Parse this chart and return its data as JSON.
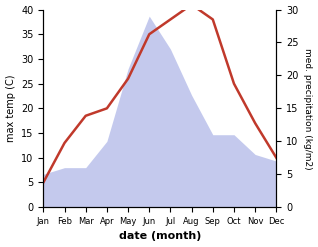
{
  "months": [
    "Jan",
    "Feb",
    "Mar",
    "Apr",
    "May",
    "Jun",
    "Jul",
    "Aug",
    "Sep",
    "Oct",
    "Nov",
    "Dec"
  ],
  "temperature": [
    5,
    13,
    18.5,
    20,
    26,
    35,
    38,
    41,
    38,
    25,
    17,
    10
  ],
  "precipitation": [
    5,
    6,
    6,
    10,
    21,
    29,
    24,
    17,
    11,
    11,
    8,
    7
  ],
  "temp_color": "#c0392b",
  "precip_color_fill": "#b0b8e8",
  "temp_ylim": [
    0,
    40
  ],
  "precip_ylim": [
    0,
    30
  ],
  "temp_linewidth": 1.8,
  "xlabel": "date (month)",
  "ylabel_left": "max temp (C)",
  "ylabel_right": "med. precipitation (kg/m2)",
  "scale_factor": 1.3333
}
